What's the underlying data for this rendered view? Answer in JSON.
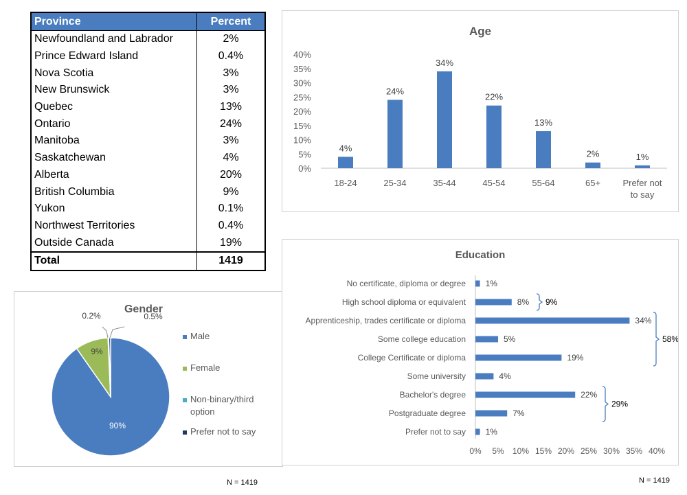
{
  "province_table": {
    "headers": [
      "Province",
      "Percent"
    ],
    "rows": [
      {
        "province": "Newfoundland and Labrador",
        "percent": "2%"
      },
      {
        "province": "Prince Edward Island",
        "percent": "0.4%"
      },
      {
        "province": "Nova Scotia",
        "percent": "3%"
      },
      {
        "province": "New Brunswick",
        "percent": "3%"
      },
      {
        "province": "Quebec",
        "percent": "13%"
      },
      {
        "province": "Ontario",
        "percent": "24%"
      },
      {
        "province": "Manitoba",
        "percent": "3%"
      },
      {
        "province": "Saskatchewan",
        "percent": "4%"
      },
      {
        "province": "Alberta",
        "percent": "20%"
      },
      {
        "province": "British Columbia",
        "percent": "9%"
      },
      {
        "province": "Yukon",
        "percent": "0.1%"
      },
      {
        "province": "Northwest Territories",
        "percent": "0.4%"
      },
      {
        "province": "Outside Canada",
        "percent": "19%"
      }
    ],
    "total": {
      "label": "Total",
      "value": "1419"
    }
  },
  "notes": {
    "n_left": "N = 1419",
    "n_right": "N = 1419"
  },
  "colors": {
    "bar": "#4a7dc0",
    "male": "#4a7dc0",
    "female": "#9bbb59",
    "nonbinary": "#4bacc6",
    "prefer_not": "#1f3864"
  },
  "chart_data": [
    {
      "type": "bar",
      "title": "Age",
      "categories": [
        "18-24",
        "25-34",
        "35-44",
        "45-54",
        "55-64",
        "65+",
        "Prefer not to say"
      ],
      "values": [
        4,
        24,
        34,
        22,
        13,
        2,
        1
      ],
      "value_labels": [
        "4%",
        "24%",
        "34%",
        "22%",
        "13%",
        "2%",
        "1%"
      ],
      "yticks": [
        "0%",
        "5%",
        "10%",
        "15%",
        "20%",
        "25%",
        "30%",
        "35%",
        "40%"
      ],
      "ylim": [
        0,
        40
      ],
      "grid": false
    },
    {
      "type": "pie",
      "title": "Gender",
      "labels": [
        "Male",
        "Female",
        "Non-binary/third option",
        "Prefer not to say"
      ],
      "values": [
        90,
        9,
        0.2,
        0.5
      ],
      "value_labels": [
        "90%",
        "9%",
        "0.2%",
        "0.5%"
      ],
      "legend": "right"
    },
    {
      "type": "bar",
      "orientation": "horizontal",
      "title": "Education",
      "categories": [
        "No certificate, diploma or degree",
        "High school diploma or equivalent",
        "Apprenticeship, trades certificate or diploma",
        "Some college education",
        "College Certificate or diploma",
        "Some university",
        "Bachelor's degree",
        "Postgraduate degree",
        "Prefer not to say"
      ],
      "values": [
        1,
        8,
        34,
        5,
        19,
        4,
        22,
        7,
        1
      ],
      "value_labels": [
        "1%",
        "8%",
        "34%",
        "5%",
        "19%",
        "4%",
        "22%",
        "7%",
        "1%"
      ],
      "xticks": [
        "0%",
        "5%",
        "10%",
        "15%",
        "20%",
        "25%",
        "30%",
        "35%",
        "40%"
      ],
      "xlim": [
        0,
        40
      ],
      "brackets": [
        {
          "from": 1,
          "to": 1,
          "label": "9%"
        },
        {
          "from": 2,
          "to": 4,
          "label": "58%"
        },
        {
          "from": 6,
          "to": 7,
          "label": "29%"
        }
      ]
    }
  ]
}
